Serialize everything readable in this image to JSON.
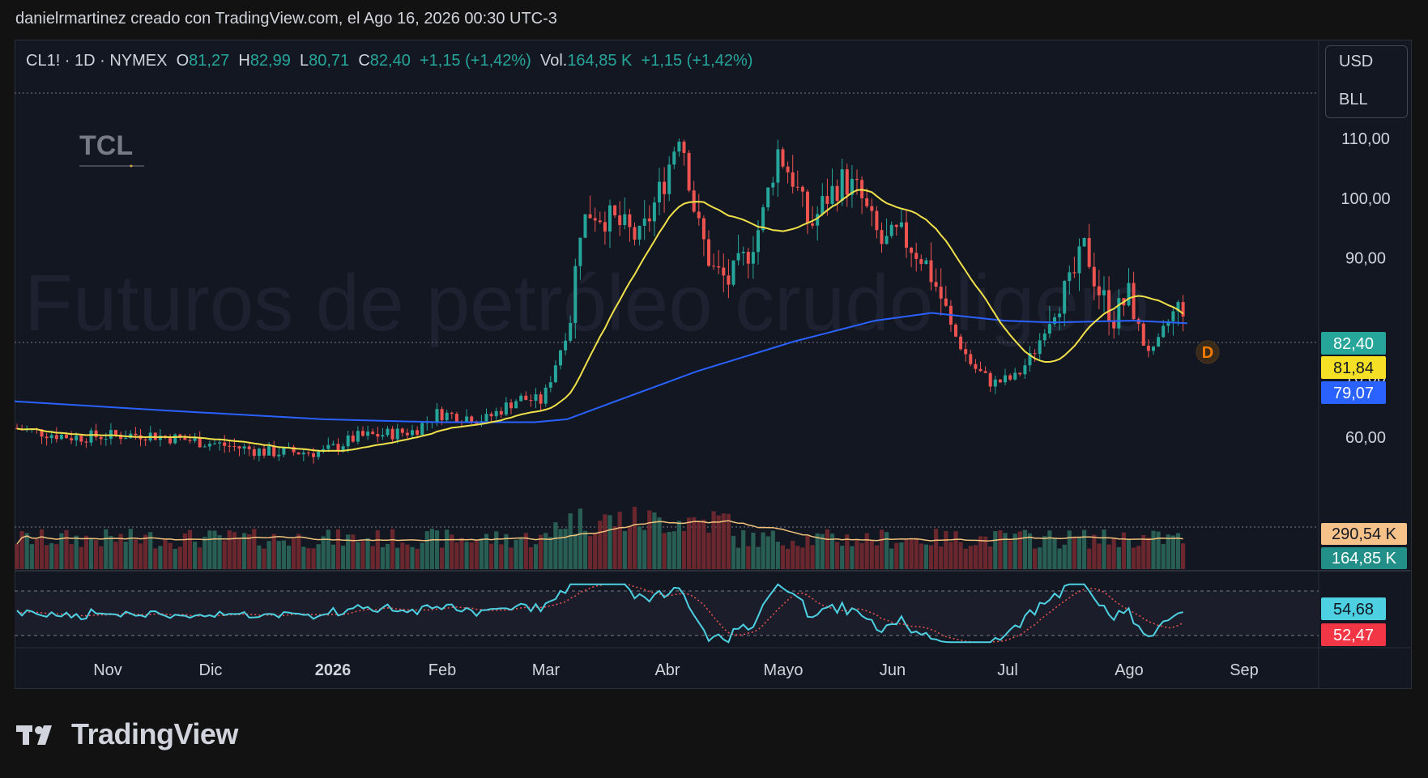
{
  "header": {
    "attribution": "danielrmartinez creado con TradingView.com, el Ago 16, 2026 00:30 UTC-3"
  },
  "legend": {
    "symbol": "CL1! · 1D · NYMEX",
    "o_label": "O",
    "o_value": "81,27",
    "h_label": "H",
    "h_value": "82,99",
    "l_label": "L",
    "l_value": "80,71",
    "c_label": "C",
    "c_value": "82,40",
    "change": "+1,15 (+1,42%)",
    "vol_label": "Vol.",
    "vol_value": "164,85 K",
    "vol_change": "+1,15 (+1,42%)"
  },
  "unit_box": {
    "currency": "USD",
    "unit": "BLL"
  },
  "logo_text": "TCL",
  "watermark": "Futuros de petróleo crudo ligero",
  "flag_badge": "D",
  "footer": {
    "brand": "TradingView"
  },
  "colors": {
    "background": "#131722",
    "up": "#26a69a",
    "down": "#ef5350",
    "ma_yellow": "#f0e04a",
    "ma_blue": "#2962ff",
    "rsi_line": "#4dd0e1",
    "rsi_signal": "#ef5350",
    "volume_ma": "#f0c27b"
  },
  "chart_data": {
    "type": "candlestick",
    "y_ticks": [
      "110,00",
      "100,00",
      "90,00",
      "70,00",
      "60,00"
    ],
    "ylim": [
      52,
      118
    ],
    "x_ticks": [
      "Nov",
      "Dic",
      "2026",
      "Feb",
      "Mar",
      "Abr",
      "Mayo",
      "Jun",
      "Jul",
      "Ago",
      "Sep"
    ],
    "price_labels": {
      "last": "82,40",
      "ma_fast": "81,84",
      "ma_slow": "79,07"
    },
    "volume_labels": {
      "ma": "290,54 K",
      "last": "164,85 K"
    },
    "rsi_labels": {
      "rsi": "54,68",
      "signal": "52,47"
    },
    "price_series": [
      {
        "month": "Nov",
        "close": 60.5
      },
      {
        "month": "Dic",
        "close": 59.0
      },
      {
        "month": "2026",
        "close": 57.5
      },
      {
        "month": "Feb",
        "close": 64.0
      },
      {
        "month": "Mar",
        "close": 67.0
      },
      {
        "month": "Mar (mid)",
        "close": 98.0
      },
      {
        "month": "Abr",
        "close": 112.0
      },
      {
        "month": "Abr (mid)",
        "close": 86.0
      },
      {
        "month": "Mayo",
        "close": 106.0
      },
      {
        "month": "Mayo (late)",
        "close": 105.0
      },
      {
        "month": "Jun",
        "close": 93.0
      },
      {
        "month": "Jun (late)",
        "close": 76.0
      },
      {
        "month": "Jul",
        "close": 68.5
      },
      {
        "month": "Jul (late)",
        "close": 93.0
      },
      {
        "month": "Ago",
        "close": 75.5
      },
      {
        "month": "Ago (mid)",
        "close": 82.4
      }
    ],
    "ma_fast_end": 81.84,
    "ma_slow_end": 79.07,
    "last_close": 82.4
  }
}
